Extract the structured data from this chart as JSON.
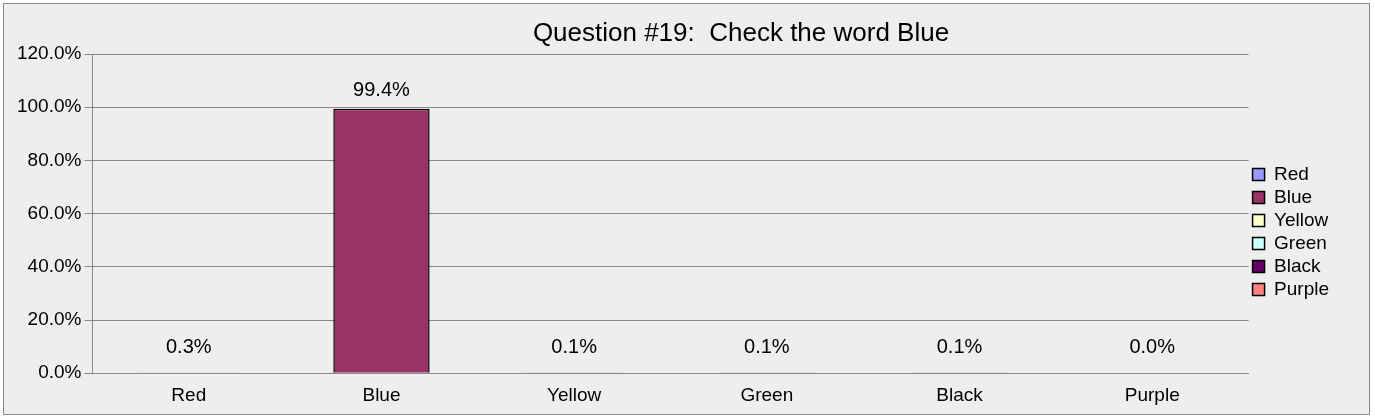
{
  "chart_data": {
    "type": "bar",
    "title": "Question #19:  Check the word Blue",
    "categories": [
      "Red",
      "Blue",
      "Yellow",
      "Green",
      "Black",
      "Purple"
    ],
    "series": [
      {
        "name": "Red",
        "color": "#9999ff",
        "values": [
          0.3,
          null,
          null,
          null,
          null,
          null
        ],
        "value_labels": [
          "0.3%",
          null,
          null,
          null,
          null,
          null
        ]
      },
      {
        "name": "Blue",
        "color": "#993366",
        "values": [
          null,
          99.4,
          null,
          null,
          null,
          null
        ],
        "value_labels": [
          null,
          "99.4%",
          null,
          null,
          null,
          null
        ]
      },
      {
        "name": "Yellow",
        "color": "#ffffcc",
        "values": [
          null,
          null,
          0.1,
          null,
          null,
          null
        ],
        "value_labels": [
          null,
          null,
          "0.1%",
          null,
          null,
          null
        ]
      },
      {
        "name": "Green",
        "color": "#ccffff",
        "values": [
          null,
          null,
          null,
          0.1,
          null,
          null
        ],
        "value_labels": [
          null,
          null,
          null,
          "0.1%",
          null,
          null
        ]
      },
      {
        "name": "Black",
        "color": "#660066",
        "values": [
          null,
          null,
          null,
          null,
          0.1,
          null
        ],
        "value_labels": [
          null,
          null,
          null,
          null,
          "0.1%",
          null
        ]
      },
      {
        "name": "Purple",
        "color": "#ff8080",
        "values": [
          null,
          null,
          null,
          null,
          null,
          0.0
        ],
        "value_labels": [
          null,
          null,
          null,
          null,
          null,
          "0.0%"
        ]
      }
    ],
    "ylim": [
      0,
      120
    ],
    "yticks": [
      {
        "value": 0,
        "label": "0.0%"
      },
      {
        "value": 20,
        "label": "20.0%"
      },
      {
        "value": 40,
        "label": "40.0%"
      },
      {
        "value": 60,
        "label": "60.0%"
      },
      {
        "value": 80,
        "label": "80.0%"
      },
      {
        "value": 100,
        "label": "100.0%"
      },
      {
        "value": 120,
        "label": "120.0%"
      }
    ],
    "grid": "y",
    "legend": "right"
  }
}
